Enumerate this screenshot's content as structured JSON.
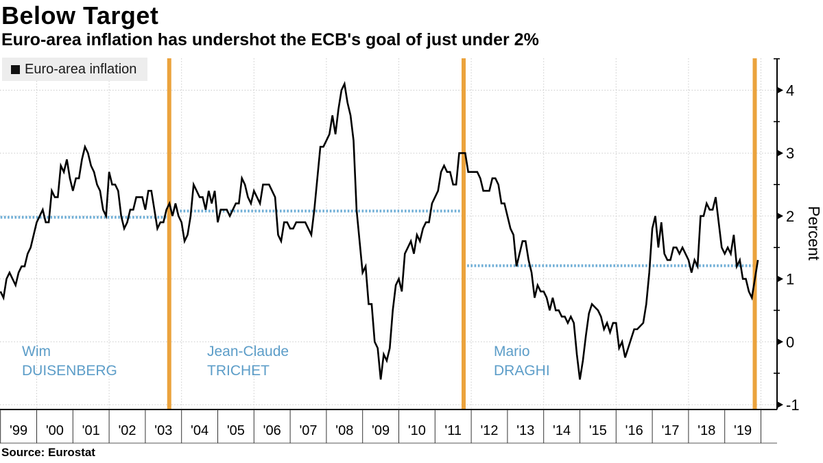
{
  "title": "Below Target",
  "subtitle": "Euro-area inflation has undershot the ECB's goal of just under 2%",
  "source": "Source: Eurostat",
  "legend": {
    "label": "Euro-area inflation",
    "swatch_color": "#111111"
  },
  "y_axis": {
    "label": "Percent",
    "ticks": [
      -1,
      0,
      1,
      2,
      3,
      4
    ],
    "minor_ticks": [
      -0.5,
      0.5,
      1.5,
      2.5,
      3.5,
      4.5
    ]
  },
  "x_axis": {
    "tick_labels": [
      "'99",
      "'00",
      "'01",
      "'02",
      "'03",
      "'04",
      "'05",
      "'06",
      "'07",
      "'08",
      "'09",
      "'10",
      "'11",
      "'12",
      "'13",
      "'14",
      "'15",
      "'16",
      "'17",
      "'18",
      "'19"
    ],
    "first_year": 1999,
    "gridline_years": [
      2000,
      2002,
      2004,
      2006,
      2008,
      2010,
      2012,
      2014,
      2016,
      2018,
      2020
    ]
  },
  "colors": {
    "line": "#000000",
    "divider_orange": "#EBA33D",
    "average_blue": "#6FAED6",
    "president_text": "#5C9DC8",
    "gridline": "#c9c9c9",
    "axis": "#000000",
    "legend_bg": "#ededed"
  },
  "presidents": [
    {
      "first_name": "Wim",
      "last_name": "DUISENBERG",
      "average_inflation": 1.98,
      "tenure_from": 1999.0,
      "tenure_to": 2003.66
    },
    {
      "first_name": "Jean-Claude",
      "last_name": "TRICHET",
      "average_inflation": 2.08,
      "tenure_from": 2003.66,
      "tenure_to": 2011.79
    },
    {
      "first_name": "Mario",
      "last_name": "DRAGHI",
      "average_inflation": 1.21,
      "tenure_from": 2011.79,
      "tenure_to": 2019.81
    }
  ],
  "transition_lines_years": [
    2003.66,
    2011.79,
    2019.83
  ],
  "chart_data": {
    "type": "line",
    "title": "Below Target",
    "subtitle": "Euro-area inflation has undershot the ECB's goal of just under 2%",
    "xlabel": "",
    "ylabel": "Percent",
    "ylim": [
      -1.07,
      4.5
    ],
    "xlim": [
      1999,
      2020.44
    ],
    "grid": "dotted",
    "legend_position": "top-left",
    "frequency": "monthly",
    "start_year": 1999,
    "series": [
      {
        "name": "Euro-area inflation",
        "color": "#000000",
        "values": [
          0.8,
          0.7,
          1.0,
          1.1,
          1.0,
          0.9,
          1.1,
          1.2,
          1.2,
          1.4,
          1.5,
          1.7,
          1.9,
          2.0,
          2.1,
          1.9,
          1.9,
          2.4,
          2.3,
          2.3,
          2.8,
          2.7,
          2.9,
          2.6,
          2.4,
          2.6,
          2.6,
          2.9,
          3.1,
          3.0,
          2.8,
          2.7,
          2.5,
          2.4,
          2.1,
          2.0,
          2.7,
          2.5,
          2.5,
          2.4,
          2.0,
          1.8,
          1.9,
          2.1,
          2.1,
          2.3,
          2.3,
          2.3,
          2.1,
          2.4,
          2.4,
          2.1,
          1.8,
          1.9,
          1.9,
          2.1,
          2.2,
          2.0,
          2.2,
          2.0,
          1.9,
          1.6,
          1.7,
          2.0,
          2.5,
          2.4,
          2.3,
          2.3,
          2.1,
          2.4,
          2.2,
          2.4,
          1.9,
          2.1,
          2.1,
          2.1,
          2.0,
          2.1,
          2.2,
          2.2,
          2.6,
          2.5,
          2.3,
          2.2,
          2.4,
          2.3,
          2.2,
          2.5,
          2.5,
          2.5,
          2.4,
          2.3,
          1.7,
          1.6,
          1.9,
          1.9,
          1.8,
          1.8,
          1.9,
          1.9,
          1.9,
          1.9,
          1.8,
          1.7,
          2.1,
          2.6,
          3.1,
          3.1,
          3.2,
          3.3,
          3.6,
          3.3,
          3.7,
          4.0,
          4.1,
          3.8,
          3.6,
          3.2,
          2.1,
          1.6,
          1.1,
          1.2,
          0.6,
          0.6,
          0.0,
          -0.1,
          -0.6,
          -0.2,
          -0.3,
          -0.1,
          0.5,
          0.9,
          1.0,
          0.8,
          1.4,
          1.5,
          1.6,
          1.4,
          1.7,
          1.6,
          1.8,
          1.9,
          1.9,
          2.2,
          2.3,
          2.4,
          2.7,
          2.8,
          2.7,
          2.7,
          2.5,
          2.5,
          3.0,
          3.0,
          3.0,
          2.7,
          2.7,
          2.7,
          2.7,
          2.6,
          2.4,
          2.4,
          2.4,
          2.6,
          2.6,
          2.5,
          2.2,
          2.2,
          2.0,
          1.8,
          1.7,
          1.2,
          1.4,
          1.6,
          1.6,
          1.3,
          1.1,
          0.7,
          0.9,
          0.8,
          0.8,
          0.7,
          0.5,
          0.7,
          0.5,
          0.5,
          0.4,
          0.4,
          0.3,
          0.4,
          0.3,
          -0.2,
          -0.6,
          -0.3,
          0.1,
          0.45,
          0.6,
          0.55,
          0.5,
          0.4,
          0.2,
          0.3,
          0.15,
          0.3,
          0.3,
          -0.1,
          0.0,
          -0.25,
          -0.1,
          0.05,
          0.2,
          0.2,
          0.25,
          0.3,
          0.6,
          1.1,
          1.8,
          2.0,
          1.5,
          1.9,
          1.4,
          1.3,
          1.3,
          1.5,
          1.5,
          1.4,
          1.5,
          1.4,
          1.3,
          1.1,
          1.3,
          1.2,
          2.0,
          2.0,
          2.2,
          2.1,
          2.1,
          2.3,
          1.9,
          1.5,
          1.4,
          1.5,
          1.4,
          1.7,
          1.2,
          1.3,
          1.0,
          1.0,
          0.8,
          0.7,
          1.0,
          1.3
        ]
      }
    ],
    "average_lines": [
      {
        "label": "Wim DUISENBERG average",
        "value": 1.98,
        "from": 1999.0,
        "to": 2003.66
      },
      {
        "label": "Jean-Claude TRICHET average",
        "value": 2.08,
        "from": 2003.66,
        "to": 2011.79
      },
      {
        "label": "Mario DRAGHI average",
        "value": 1.21,
        "from": 2011.79,
        "to": 2019.81
      }
    ],
    "vertical_markers_years": [
      2003.66,
      2011.79,
      2019.83
    ]
  }
}
